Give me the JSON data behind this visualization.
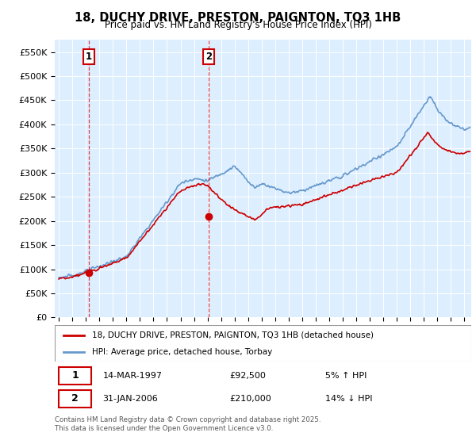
{
  "title": "18, DUCHY DRIVE, PRESTON, PAIGNTON, TQ3 1HB",
  "subtitle": "Price paid vs. HM Land Registry's House Price Index (HPI)",
  "ylabel_ticks": [
    "£0",
    "£50K",
    "£100K",
    "£150K",
    "£200K",
    "£250K",
    "£300K",
    "£350K",
    "£400K",
    "£450K",
    "£500K",
    "£550K"
  ],
  "ytick_values": [
    0,
    50000,
    100000,
    150000,
    200000,
    250000,
    300000,
    350000,
    400000,
    450000,
    500000,
    550000
  ],
  "ylim": [
    0,
    575000
  ],
  "xlim_start": 1994.7,
  "xlim_end": 2025.5,
  "sale1_date": 1997.2,
  "sale1_price": 92500,
  "sale1_label": "1",
  "sale2_date": 2006.08,
  "sale2_price": 210000,
  "sale2_label": "2",
  "legend_line1": "18, DUCHY DRIVE, PRESTON, PAIGNTON, TQ3 1HB (detached house)",
  "legend_line2": "HPI: Average price, detached house, Torbay",
  "footer": "Contains HM Land Registry data © Crown copyright and database right 2025.\nThis data is licensed under the Open Government Licence v3.0.",
  "line_color_red": "#cc0000",
  "line_color_blue": "#6699cc",
  "plot_bg": "#ddeeff",
  "grid_color": "#ffffff",
  "dashed_line_color": "#dd2222"
}
